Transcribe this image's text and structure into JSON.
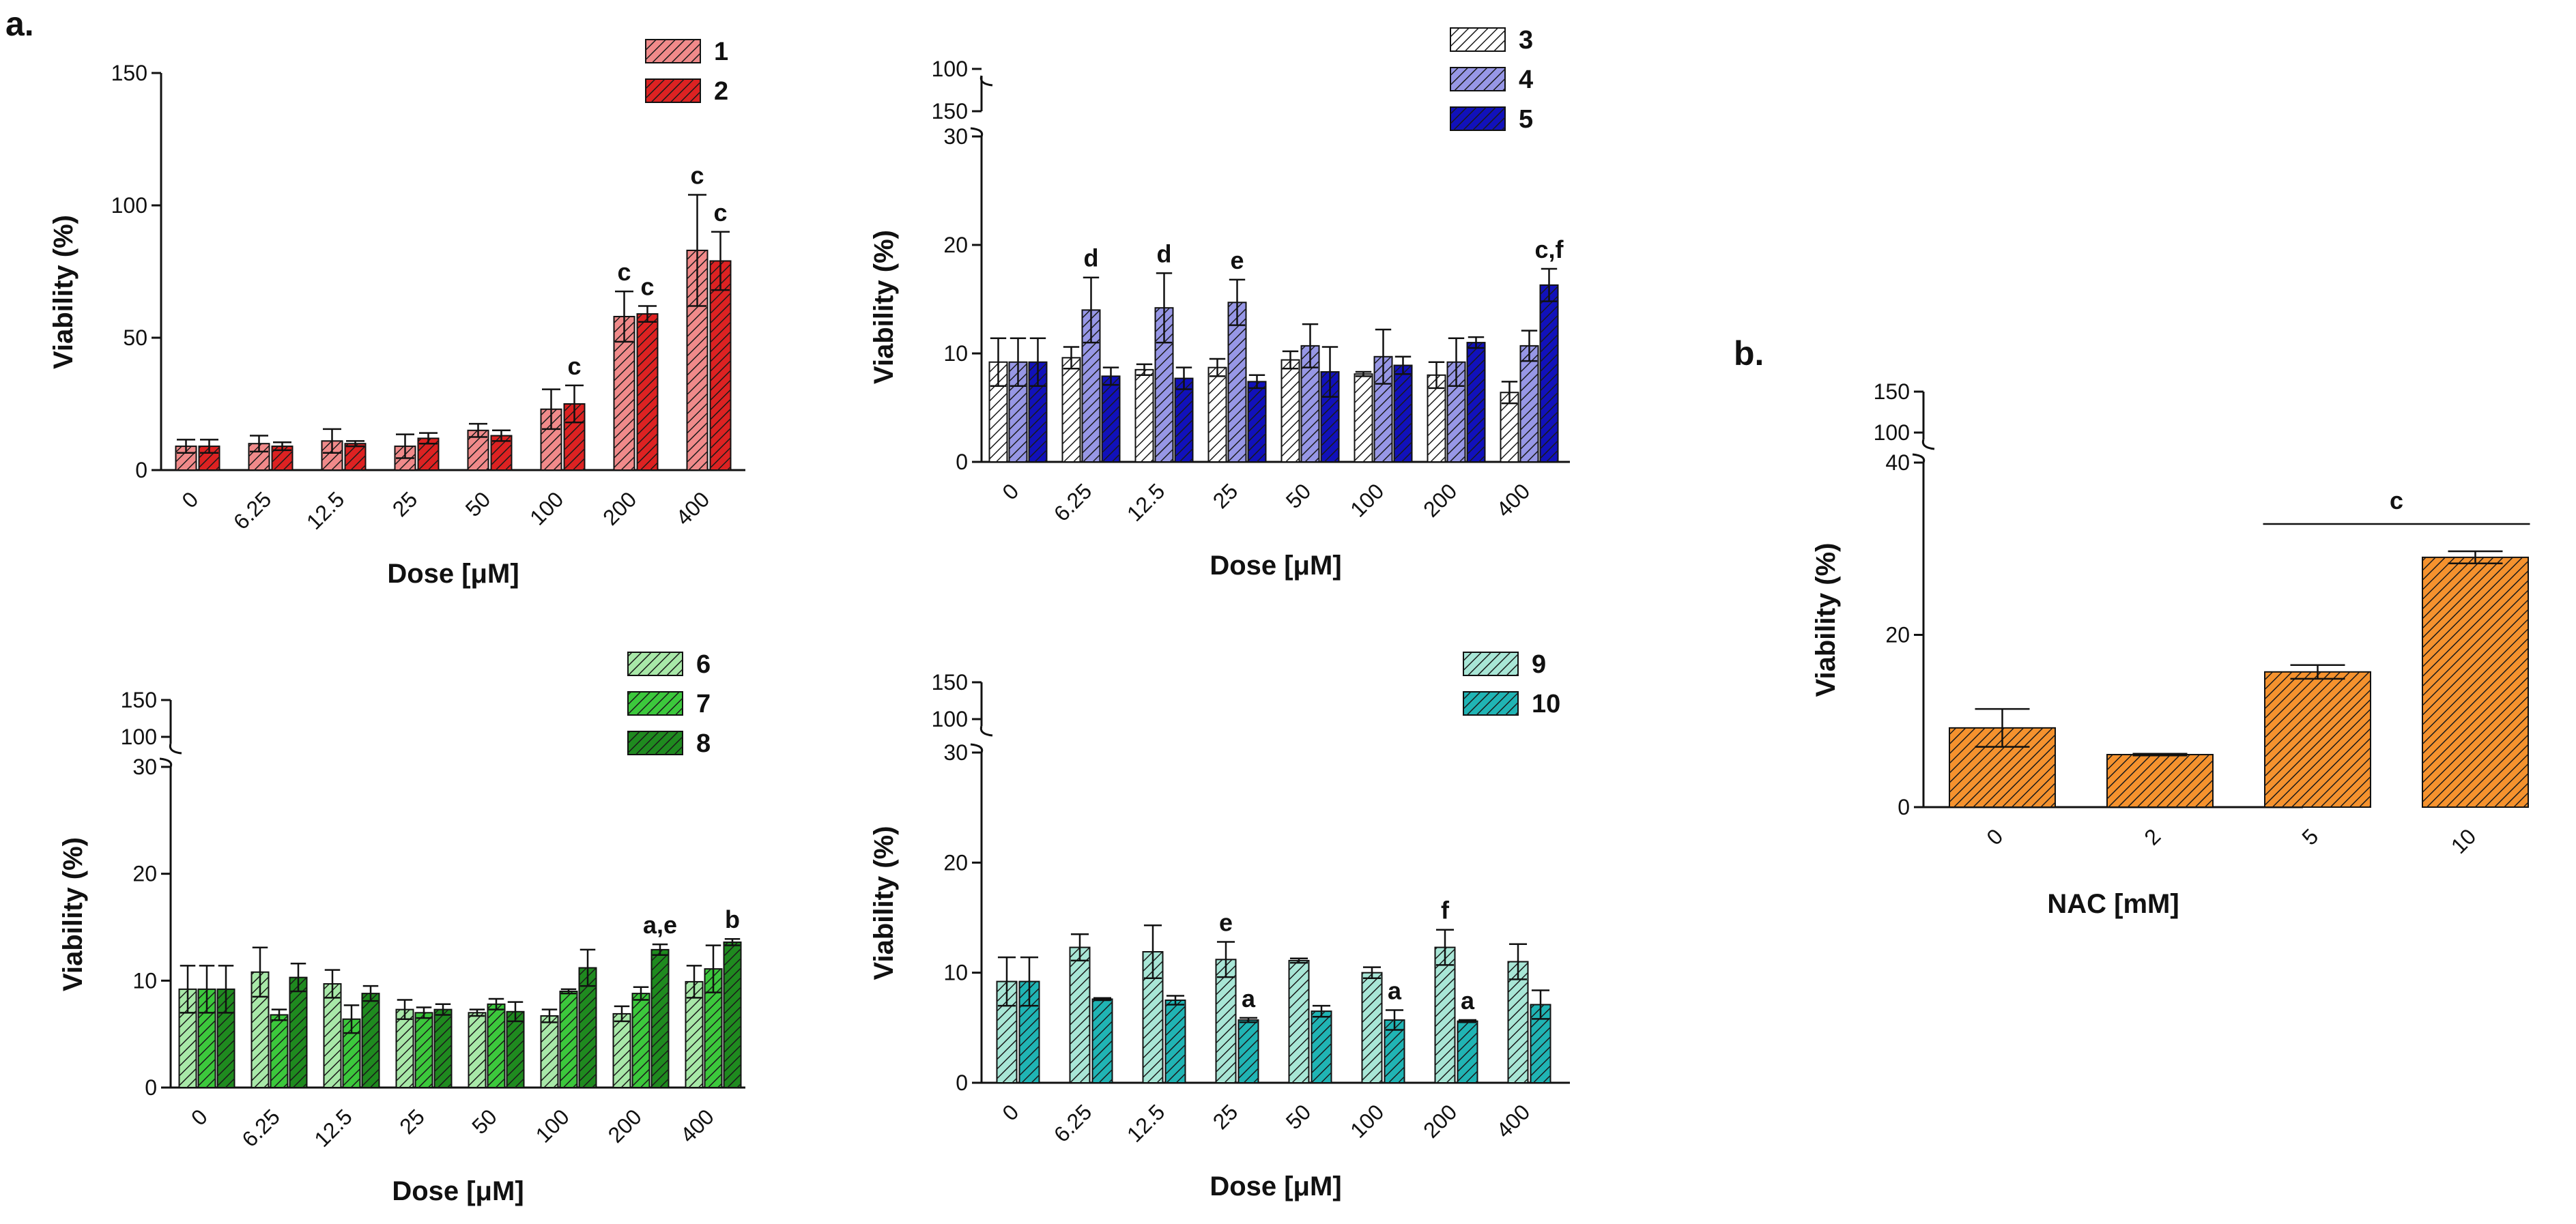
{
  "panel_labels": {
    "a": "a.",
    "b": "b."
  },
  "chart_data": [
    {
      "id": "a1",
      "type": "bar",
      "title": "",
      "xlabel": "Dose [μM]",
      "ylabel": "Viability (%)",
      "categories": [
        "0",
        "6.25",
        "12.5",
        "25",
        "50",
        "100",
        "200",
        "400"
      ],
      "ylim": [
        0,
        150
      ],
      "yticks": [
        0,
        50,
        100,
        150
      ],
      "series": [
        {
          "name": "1",
          "color": "#f08a8a",
          "hatch": true,
          "values": [
            9,
            10,
            11,
            9,
            15,
            23,
            58,
            83
          ],
          "errors": [
            2.5,
            3,
            4.5,
            4.5,
            2.5,
            7.5,
            9.5,
            21
          ]
        },
        {
          "name": "2",
          "color": "#dd2222",
          "hatch": true,
          "values": [
            9,
            9,
            10,
            12,
            13,
            25,
            59,
            79
          ],
          "errors": [
            2.5,
            1.5,
            1,
            2,
            2,
            7,
            3,
            11
          ]
        }
      ],
      "annotations": [
        {
          "category": "100",
          "series": "2",
          "label": "c"
        },
        {
          "category": "200",
          "series": "1",
          "label": "c"
        },
        {
          "category": "200",
          "series": "2",
          "label": "c"
        },
        {
          "category": "400",
          "series": "1",
          "label": "c"
        },
        {
          "category": "400",
          "series": "2",
          "label": "c"
        }
      ]
    },
    {
      "id": "a2",
      "type": "bar",
      "title": "",
      "xlabel": "Dose [μM]",
      "ylabel": "Viability (%)",
      "categories": [
        "0",
        "6.25",
        "12.5",
        "25",
        "50",
        "100",
        "200",
        "400"
      ],
      "ylim": [
        0,
        30
      ],
      "yticks": [
        0,
        10,
        20,
        30
      ],
      "broken_axis_ticks": [
        100,
        150
      ],
      "series": [
        {
          "name": "3",
          "color": "#ffffff",
          "hatch": true,
          "values": [
            9.2,
            9.6,
            8.5,
            8.7,
            9.4,
            8.1,
            8.0,
            6.4
          ],
          "errors": [
            2.2,
            1.0,
            0.5,
            0.8,
            0.8,
            0.2,
            1.2,
            1.0
          ]
        },
        {
          "name": "4",
          "color": "#9797e6",
          "hatch": true,
          "values": [
            9.2,
            14.0,
            14.2,
            14.7,
            10.7,
            9.7,
            9.2,
            10.7
          ],
          "errors": [
            2.2,
            3.0,
            3.2,
            2.1,
            2.0,
            2.5,
            2.2,
            1.4
          ]
        },
        {
          "name": "5",
          "color": "#1111bb",
          "hatch": true,
          "values": [
            9.2,
            7.9,
            7.7,
            7.4,
            8.3,
            8.9,
            11.0,
            16.3
          ],
          "errors": [
            2.2,
            0.8,
            1.0,
            0.6,
            2.3,
            0.8,
            0.5,
            1.5
          ]
        }
      ],
      "annotations": [
        {
          "category": "6.25",
          "series": "4",
          "label": "d"
        },
        {
          "category": "12.5",
          "series": "4",
          "label": "d"
        },
        {
          "category": "25",
          "series": "4",
          "label": "e"
        },
        {
          "category": "400",
          "series": "5",
          "label": "c,f"
        }
      ]
    },
    {
      "id": "a3",
      "type": "bar",
      "title": "",
      "xlabel": "Dose [μM]",
      "ylabel": "Viability (%)",
      "categories": [
        "0",
        "6.25",
        "12.5",
        "25",
        "50",
        "100",
        "200",
        "400"
      ],
      "ylim": [
        0,
        30
      ],
      "yticks": [
        0,
        10,
        20,
        30
      ],
      "broken_axis_ticks": [
        100,
        150
      ],
      "series": [
        {
          "name": "6",
          "color": "#a8e8a8",
          "hatch": true,
          "values": [
            9.2,
            10.8,
            9.7,
            7.3,
            7.0,
            6.7,
            6.9,
            9.9
          ],
          "errors": [
            2.2,
            2.3,
            1.3,
            0.9,
            0.3,
            0.6,
            0.7,
            1.5
          ]
        },
        {
          "name": "7",
          "color": "#3cc83c",
          "hatch": true,
          "values": [
            9.2,
            6.8,
            6.4,
            7.0,
            7.8,
            9.0,
            8.8,
            11.1
          ],
          "errors": [
            2.2,
            0.5,
            1.3,
            0.5,
            0.5,
            0.2,
            0.6,
            2.2
          ]
        },
        {
          "name": "8",
          "color": "#1f8a1f",
          "hatch": true,
          "values": [
            9.2,
            10.3,
            8.8,
            7.3,
            7.1,
            11.2,
            12.9,
            13.6
          ],
          "errors": [
            2.2,
            1.3,
            0.7,
            0.5,
            0.9,
            1.7,
            0.5,
            0.3
          ]
        }
      ],
      "annotations": [
        {
          "category": "200",
          "series": "8",
          "label": "a,e"
        },
        {
          "category": "400",
          "series": "8",
          "label": "b"
        }
      ]
    },
    {
      "id": "a4",
      "type": "bar",
      "title": "",
      "xlabel": "Dose [μM]",
      "ylabel": "Viability (%)",
      "categories": [
        "0",
        "6.25",
        "12.5",
        "25",
        "50",
        "100",
        "200",
        "400"
      ],
      "ylim": [
        0,
        30
      ],
      "yticks": [
        0,
        10,
        20,
        30
      ],
      "broken_axis_ticks": [
        100,
        150
      ],
      "series": [
        {
          "name": "9",
          "color": "#a8e6d6",
          "hatch": true,
          "values": [
            9.2,
            12.3,
            11.9,
            11.2,
            11.1,
            10.0,
            12.3,
            11.0
          ],
          "errors": [
            2.2,
            1.2,
            2.4,
            1.6,
            0.2,
            0.5,
            1.6,
            1.6
          ]
        },
        {
          "name": "10",
          "color": "#20b4b4",
          "hatch": true,
          "values": [
            9.2,
            7.6,
            7.5,
            5.7,
            6.5,
            5.7,
            5.6,
            7.1
          ],
          "errors": [
            2.2,
            0.1,
            0.4,
            0.2,
            0.5,
            0.9,
            0.1,
            1.3
          ]
        }
      ],
      "annotations": [
        {
          "category": "25",
          "series": "9",
          "label": "e"
        },
        {
          "category": "25",
          "series": "10",
          "label": "a"
        },
        {
          "category": "100",
          "series": "10",
          "label": "a"
        },
        {
          "category": "200",
          "series": "9",
          "label": "f"
        },
        {
          "category": "200",
          "series": "10",
          "label": "a"
        }
      ]
    },
    {
      "id": "b",
      "type": "bar",
      "title": "",
      "xlabel": "NAC [mM]",
      "ylabel": "Viability (%)",
      "categories": [
        "0",
        "2",
        "5",
        "10"
      ],
      "ylim": [
        0,
        40
      ],
      "yticks": [
        0,
        20,
        40
      ],
      "broken_axis_ticks": [
        100,
        150
      ],
      "series": [
        {
          "name": "NAC",
          "color": "#f5922e",
          "hatch": true,
          "values": [
            9.2,
            6.1,
            15.7,
            29.0
          ],
          "errors": [
            2.2,
            0.1,
            0.8,
            0.7
          ]
        }
      ],
      "group_annotation": {
        "from": "5",
        "to": "10",
        "label": "c"
      }
    }
  ]
}
